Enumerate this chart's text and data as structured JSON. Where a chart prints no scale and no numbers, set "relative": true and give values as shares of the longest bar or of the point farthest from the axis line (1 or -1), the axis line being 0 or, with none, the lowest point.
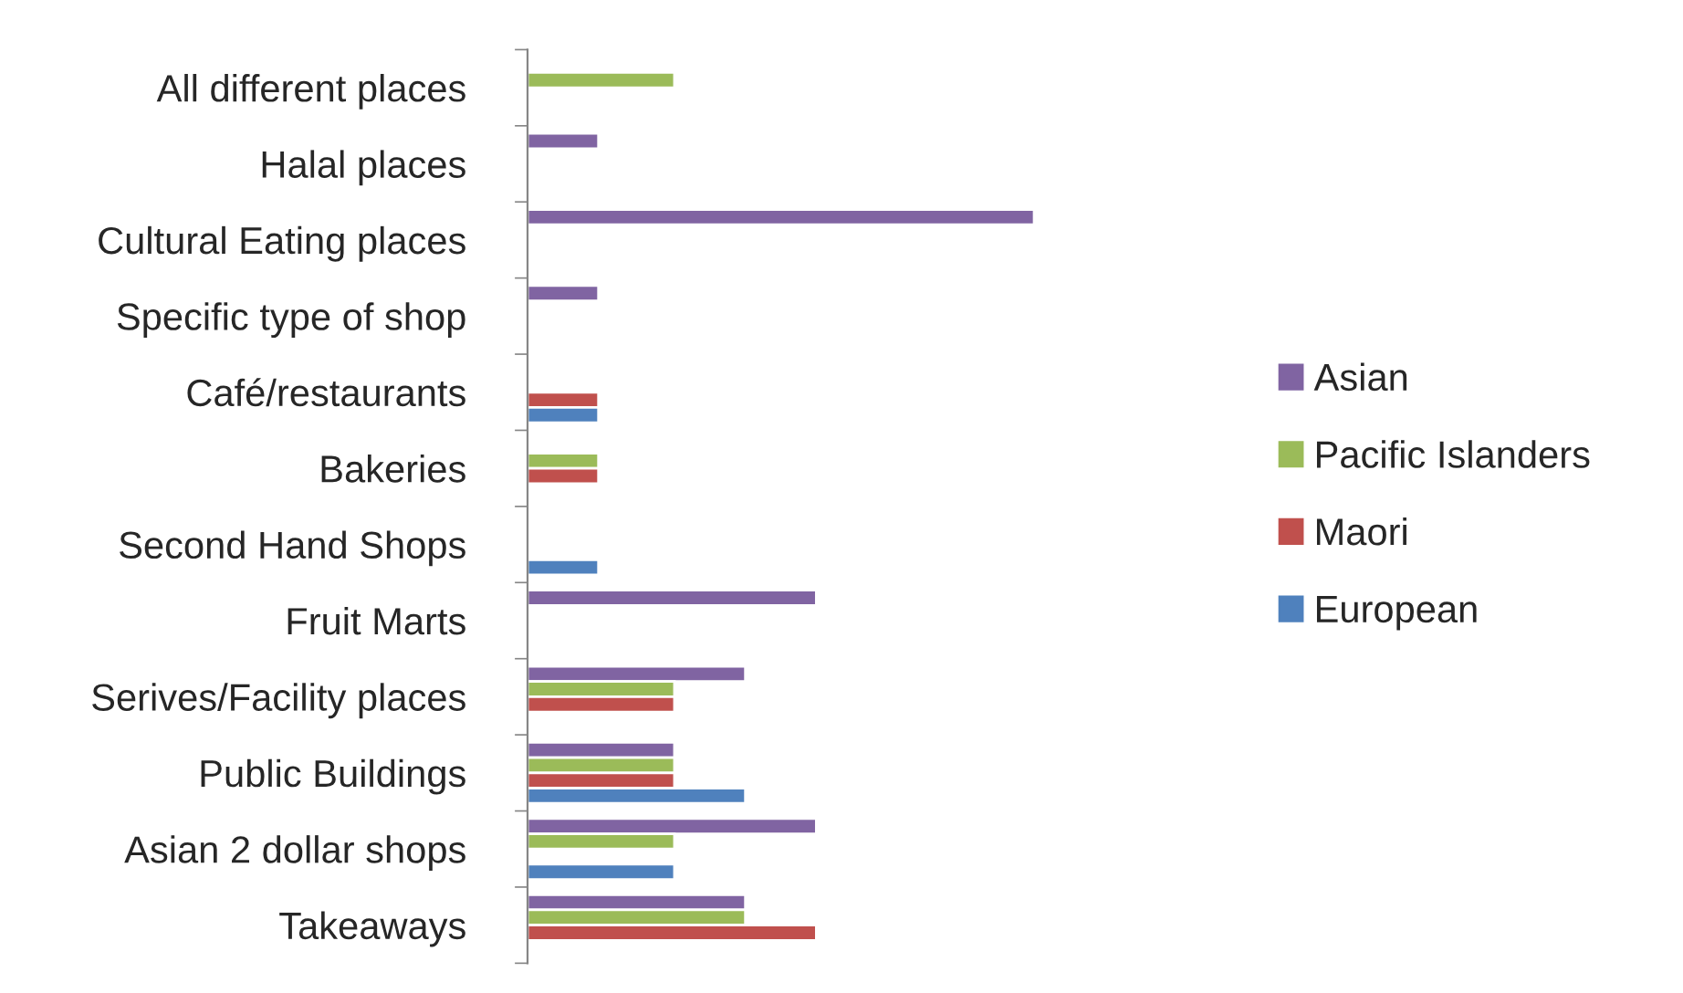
{
  "chart_data": {
    "type": "bar",
    "orientation": "horizontal",
    "relative": true,
    "legend": "right",
    "grid": false,
    "categories": [
      "All different places",
      "Halal places",
      "Cultural Eating places",
      "Specific type of shop",
      "Café/restaurants",
      "Bakeries",
      "Second Hand Shops",
      "Fruit Marts",
      "Serives/Facility places",
      "Public Buildings",
      "Asian 2 dollar shops",
      "Takeaways"
    ],
    "series": [
      {
        "name": "Asian",
        "color": "#8064a2",
        "values": [
          null,
          0.14,
          1,
          0.14,
          null,
          null,
          null,
          0.57,
          0.43,
          0.29,
          0.57,
          0.43
        ]
      },
      {
        "name": "Pacific Islanders",
        "color": "#9bbb59",
        "values": [
          0.29,
          null,
          null,
          null,
          null,
          0.14,
          null,
          null,
          0.29,
          0.29,
          0.29,
          0.43
        ]
      },
      {
        "name": "Maori",
        "color": "#c0504d",
        "values": [
          null,
          null,
          null,
          null,
          0.14,
          0.14,
          null,
          null,
          0.29,
          0.29,
          null,
          0.57
        ]
      },
      {
        "name": "European",
        "color": "#4f81bd",
        "values": [
          null,
          null,
          null,
          null,
          0.14,
          null,
          0.14,
          null,
          null,
          0.43,
          0.29,
          null
        ]
      }
    ]
  }
}
